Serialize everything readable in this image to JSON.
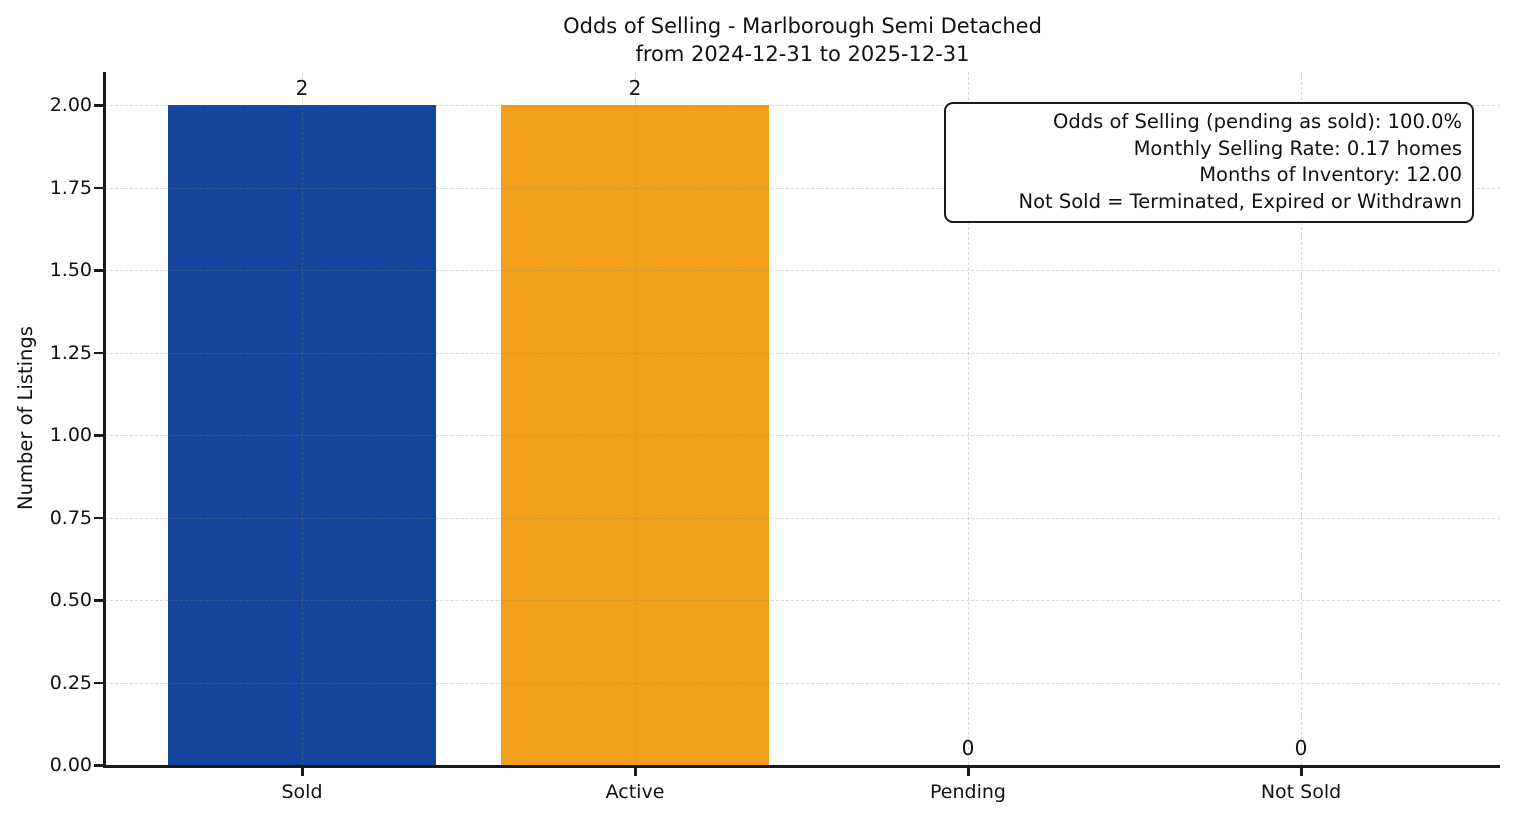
{
  "chart_data": {
    "type": "bar",
    "title": "Odds of Selling - Marlborough Semi Detached",
    "subtitle": "from 2024-12-31 to 2025-12-31",
    "categories": [
      "Sold",
      "Active",
      "Pending",
      "Not Sold"
    ],
    "values": [
      2,
      2,
      0,
      0
    ],
    "value_labels": [
      "2",
      "2",
      "0",
      "0"
    ],
    "bar_colors": [
      "#14459c",
      "#f2a019",
      "transparent",
      "transparent"
    ],
    "xlabel": "",
    "ylabel": "Number of Listings",
    "ylim": [
      0,
      2.1
    ],
    "ytick_labels": [
      "0.00",
      "0.25",
      "0.50",
      "0.75",
      "1.00",
      "1.25",
      "1.50",
      "1.75",
      "2.00"
    ],
    "ytick_values": [
      0,
      0.25,
      0.5,
      0.75,
      1.0,
      1.25,
      1.5,
      1.75,
      2.0
    ],
    "grid": "dashed both axes",
    "legend_position": "none",
    "annotation": {
      "lines": [
        "Odds of Selling (pending as sold): 100.0%",
        "Monthly Selling Rate: 0.17 homes",
        "Months of Inventory: 12.00",
        "Not Sold = Terminated, Expired or Withdrawn"
      ]
    }
  }
}
